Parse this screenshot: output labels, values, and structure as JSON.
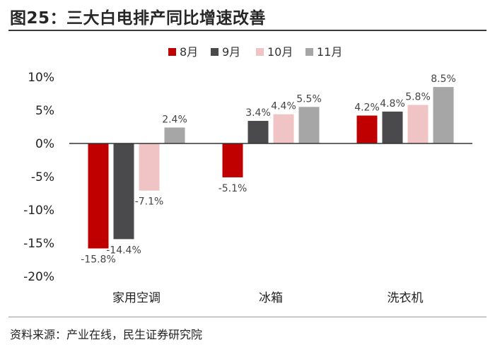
{
  "title": "图25：三大白电排产同比增速改善",
  "source": "资料来源：产业在线，民生证券研究院",
  "chart_data": {
    "type": "bar",
    "categories": [
      "家用空调",
      "冰箱",
      "洗衣机"
    ],
    "series": [
      {
        "name": "8月",
        "color": "#c00000",
        "values": [
          -15.8,
          -5.1,
          4.2
        ],
        "labels": [
          "-15.8%",
          "-5.1%",
          "4.2%"
        ]
      },
      {
        "name": "9月",
        "color": "#4a4a4d",
        "values": [
          -14.4,
          3.4,
          4.8
        ],
        "labels": [
          "-14.4%",
          "3.4%",
          "4.8%"
        ]
      },
      {
        "name": "10月",
        "color": "#f0c4c4",
        "values": [
          -7.1,
          4.4,
          5.8
        ],
        "labels": [
          "-7.1%",
          "4.4%",
          "5.8%"
        ]
      },
      {
        "name": "11月",
        "color": "#a6a6a6",
        "values": [
          2.4,
          5.5,
          8.5
        ],
        "labels": [
          "2.4%",
          "5.5%",
          "8.5%"
        ]
      }
    ],
    "ylim": [
      -20,
      10
    ],
    "yticks": [
      10,
      5,
      0,
      -5,
      -10,
      -15,
      -20
    ],
    "ytick_labels": [
      "10%",
      "5%",
      "0%",
      "-5%",
      "-10%",
      "-15%",
      "-20%"
    ],
    "xlabel": "",
    "ylabel": "",
    "legend_position": "top-center",
    "grid": false
  }
}
